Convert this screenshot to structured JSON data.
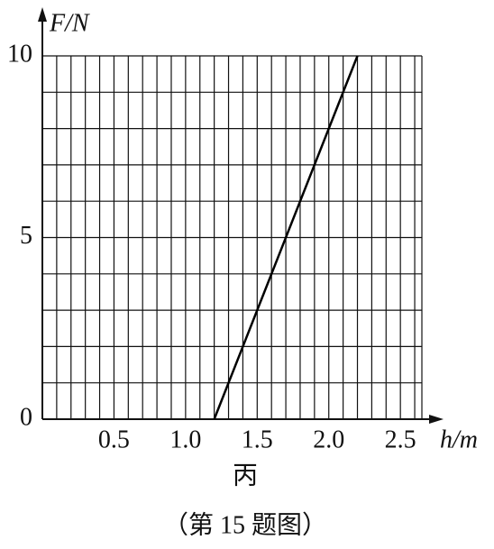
{
  "chart_data": {
    "type": "line",
    "x_label": "h/m",
    "y_label": "F/N",
    "figure_label": "丙",
    "caption": "（第 15 题图）",
    "x": [
      1.2,
      2.2
    ],
    "values": [
      0,
      10
    ],
    "color": "#000000",
    "xlim": [
      0,
      2.65
    ],
    "ylim": [
      0,
      10
    ],
    "xticks": [
      0.5,
      {
        "value": 1,
        "label": "1.0"
      },
      1.5,
      {
        "value": 2,
        "label": "2.0"
      },
      2.5
    ],
    "yticks": [
      0,
      5,
      10
    ],
    "grid": true,
    "x_grid_step": 0.1,
    "y_grid_step": 1
  }
}
